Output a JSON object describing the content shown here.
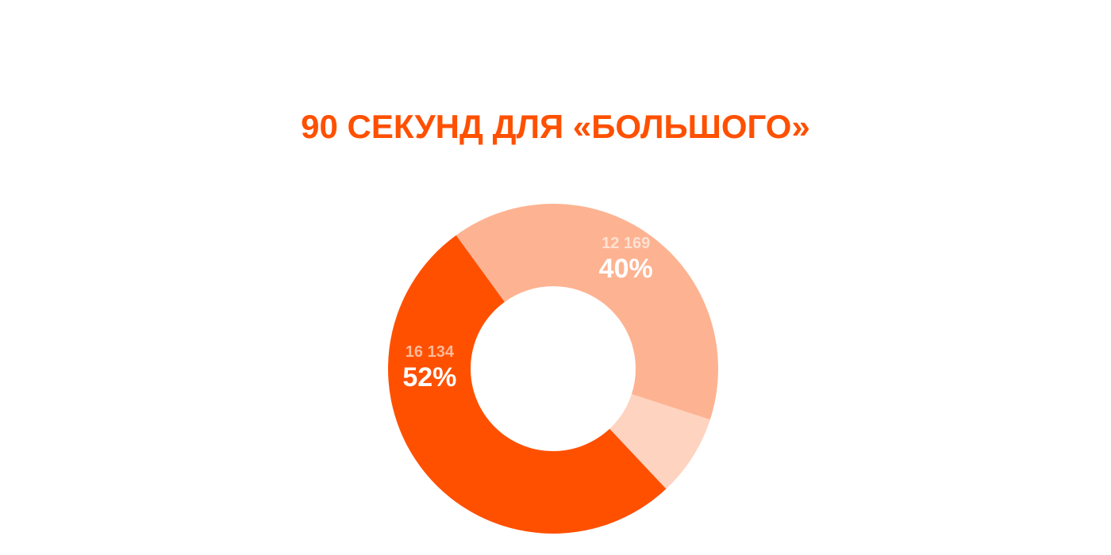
{
  "chart_data": {
    "type": "donut",
    "title": "90 СЕКУНД ДЛЯ «БОЛЬШОГО»",
    "values": [
      40,
      8,
      52
    ],
    "value_labels": [
      "40%",
      null,
      "52%"
    ],
    "counts": [
      12169,
      null,
      16134
    ],
    "count_labels": [
      "12 169",
      null,
      "16 134"
    ],
    "colors": [
      "#fdb391",
      "#fed3c0",
      "#ff5000"
    ]
  }
}
